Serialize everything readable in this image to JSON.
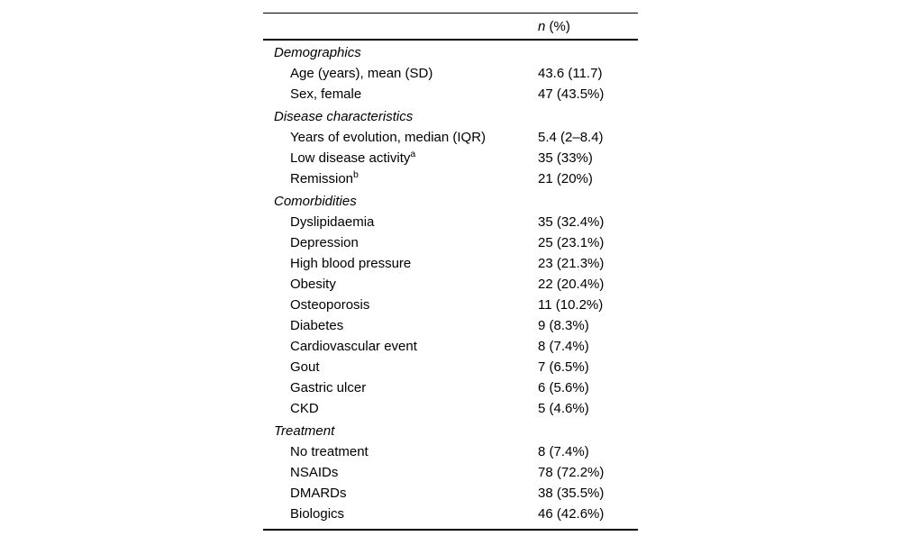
{
  "page": {
    "background_color": "#ffffff",
    "text_color": "#000000"
  },
  "table": {
    "header": {
      "n_symbol": "n",
      "percent_label": " (%)"
    },
    "rows": [
      {
        "type": "section",
        "label": "Demographics",
        "value": ""
      },
      {
        "type": "item",
        "label": "Age (years), mean (SD)",
        "value": "43.6 (11.7)"
      },
      {
        "type": "item",
        "label": "Sex, female",
        "value": "47 (43.5%)"
      },
      {
        "type": "section",
        "label": "Disease characteristics",
        "value": ""
      },
      {
        "type": "item",
        "label": "Years of evolution, median (IQR)",
        "value": "5.4 (2–8.4)"
      },
      {
        "type": "item",
        "label": "Low disease activity",
        "sup": "a",
        "value": "35 (33%)"
      },
      {
        "type": "item",
        "label": "Remission",
        "sup": "b",
        "value": "21 (20%)"
      },
      {
        "type": "section",
        "label": "Comorbidities",
        "value": ""
      },
      {
        "type": "item",
        "label": "Dyslipidaemia",
        "value": "35 (32.4%)"
      },
      {
        "type": "item",
        "label": "Depression",
        "value": "25 (23.1%)"
      },
      {
        "type": "item",
        "label": "High blood pressure",
        "value": "23 (21.3%)"
      },
      {
        "type": "item",
        "label": "Obesity",
        "value": "22 (20.4%)"
      },
      {
        "type": "item",
        "label": "Osteoporosis",
        "value": "11 (10.2%)"
      },
      {
        "type": "item",
        "label": "Diabetes",
        "value": "9 (8.3%)"
      },
      {
        "type": "item",
        "label": "Cardiovascular event",
        "value": "8 (7.4%)"
      },
      {
        "type": "item",
        "label": "Gout",
        "value": "7 (6.5%)"
      },
      {
        "type": "item",
        "label": "Gastric ulcer",
        "value": "6 (5.6%)"
      },
      {
        "type": "item",
        "label": "CKD",
        "value": "5 (4.6%)"
      },
      {
        "type": "section",
        "label": "Treatment",
        "value": ""
      },
      {
        "type": "item",
        "label": "No treatment",
        "value": "8 (7.4%)"
      },
      {
        "type": "item",
        "label": "NSAIDs",
        "value": "78 (72.2%)"
      },
      {
        "type": "item",
        "label": "DMARDs",
        "value": "38 (35.5%)"
      },
      {
        "type": "item",
        "label": "Biologics",
        "value": "46 (42.6%)"
      }
    ]
  }
}
